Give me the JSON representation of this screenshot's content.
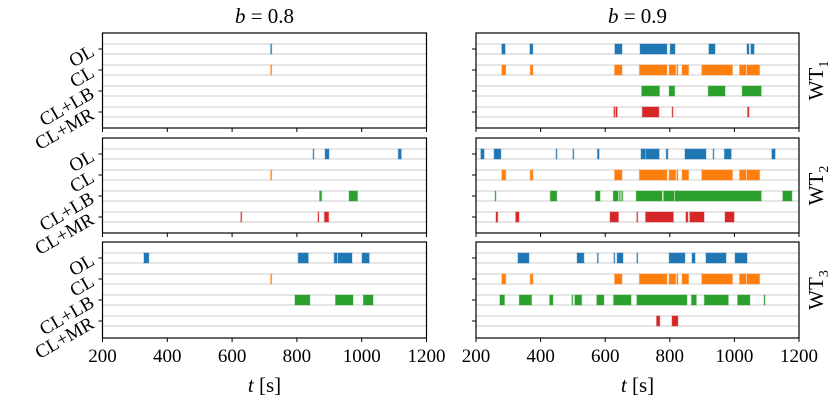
{
  "chart_data": {
    "type": "event-raster",
    "columns": [
      {
        "title_var": "b",
        "title_value": "0.8"
      },
      {
        "title_var": "b",
        "title_value": "0.9"
      }
    ],
    "rows": [
      {
        "label_base": "WT",
        "label_sub": "1"
      },
      {
        "label_base": "WT",
        "label_sub": "2"
      },
      {
        "label_base": "WT",
        "label_sub": "3"
      }
    ],
    "categories": [
      "OL",
      "CL",
      "CL+LB",
      "CL+MR"
    ],
    "colors": {
      "OL": "#1f77b4",
      "CL": "#ff7f0e",
      "CL+LB": "#2ca02c",
      "CL+MR": "#d62728"
    },
    "grid_color": "#cccccc",
    "xlabel_var": "t",
    "xlabel_unit": "[s]",
    "xlim": [
      200,
      1200
    ],
    "xticks": [
      200,
      400,
      600,
      800,
      1000,
      1200
    ],
    "grid": true,
    "panels": [
      {
        "column": 0,
        "row": 0,
        "intervals": {
          "OL": [
            [
              719,
              722
            ]
          ],
          "CL": [
            [
              719,
              722
            ]
          ],
          "CL+LB": [],
          "CL+MR": []
        }
      },
      {
        "column": 1,
        "row": 0,
        "intervals": {
          "OL": [
            [
              280,
              290
            ],
            [
              367,
              376
            ],
            [
              630,
              652
            ],
            [
              708,
              791
            ],
            [
              801,
              816
            ],
            [
              921,
              940
            ],
            [
              1039,
              1045
            ],
            [
              1051,
              1061
            ]
          ],
          "CL": [
            [
              280,
              292
            ],
            [
              368,
              376
            ],
            [
              629,
              652
            ],
            [
              706,
              791
            ],
            [
              798,
              818
            ],
            [
              822,
              825
            ],
            [
              838,
              858
            ],
            [
              899,
              994
            ],
            [
              1016,
              1036
            ],
            [
              1039,
              1078
            ]
          ],
          "CL+LB": [
            [
              713,
              768
            ],
            [
              798,
              815
            ],
            [
              919,
              971
            ],
            [
              1024,
              1083
            ]
          ],
          "CL+MR": [
            [
              627,
              629
            ],
            [
              633,
              637
            ],
            [
              715,
              766
            ],
            [
              807,
              809
            ],
            [
              1041,
              1045
            ]
          ]
        }
      },
      {
        "column": 0,
        "row": 1,
        "intervals": {
          "OL": [
            [
              850,
              852
            ],
            [
              887,
              899
            ],
            [
              1113,
              1122
            ]
          ],
          "CL": [
            [
              719,
              722
            ]
          ],
          "CL+LB": [
            [
              870,
              876
            ],
            [
              961,
              987
            ]
          ],
          "CL+MR": [
            [
              627,
              629
            ],
            [
              865,
              867
            ],
            [
              885,
              898
            ]
          ]
        }
      },
      {
        "column": 1,
        "row": 1,
        "intervals": {
          "OL": [
            [
              215,
              225
            ],
            [
              256,
              277
            ],
            [
              448,
              450
            ],
            [
              500,
              502
            ],
            [
              576,
              581
            ],
            [
              711,
              724
            ],
            [
              726,
              767
            ],
            [
              789,
              794
            ],
            [
              847,
              912
            ],
            [
              934,
              936
            ],
            [
              969,
              990
            ],
            [
              1116,
              1126
            ]
          ],
          "CL": [
            [
              280,
              292
            ],
            [
              368,
              376
            ],
            [
              629,
              652
            ],
            [
              706,
              791
            ],
            [
              798,
              818
            ],
            [
              822,
              825
            ],
            [
              838,
              858
            ],
            [
              899,
              994
            ],
            [
              1016,
              1036
            ],
            [
              1039,
              1078
            ]
          ],
          "CL+LB": [
            [
              259,
              261
            ],
            [
              430,
              450
            ],
            [
              570,
              584
            ],
            [
              625,
              640
            ],
            [
              644,
              646
            ],
            [
              651,
              654
            ],
            [
              696,
              776
            ],
            [
              781,
              813
            ],
            [
              816,
              1083
            ],
            [
              1150,
              1178
            ]
          ],
          "CL+MR": [
            [
              262,
              267
            ],
            [
              323,
              333
            ],
            [
              615,
              641
            ],
            [
              698,
              700
            ],
            [
              725,
              811
            ],
            [
              850,
              856
            ],
            [
              862,
              906
            ],
            [
              971,
              999
            ]
          ]
        }
      },
      {
        "column": 0,
        "row": 2,
        "intervals": {
          "OL": [
            [
              328,
              343
            ],
            [
              804,
              835
            ],
            [
              915,
              924
            ],
            [
              927,
              970
            ],
            [
              1001,
              1023
            ]
          ],
          "CL": [
            [
              719,
              722
            ]
          ],
          "CL+LB": [
            [
              794,
              840
            ],
            [
              919,
              973
            ],
            [
              1005,
              1035
            ]
          ],
          "CL+MR": []
        }
      },
      {
        "column": 1,
        "row": 2,
        "intervals": {
          "OL": [
            [
              330,
              364
            ],
            [
              513,
              534
            ],
            [
              576,
              578
            ],
            [
              627,
              629
            ],
            [
              637,
              655
            ],
            [
              698,
              700
            ],
            [
              798,
              847
            ],
            [
              869,
              878
            ],
            [
              912,
              974
            ],
            [
              1002,
              1039
            ]
          ],
          "CL": [
            [
              280,
              292
            ],
            [
              368,
              376
            ],
            [
              629,
              652
            ],
            [
              706,
              791
            ],
            [
              798,
              818
            ],
            [
              822,
              825
            ],
            [
              838,
              858
            ],
            [
              899,
              994
            ],
            [
              1016,
              1036
            ],
            [
              1039,
              1078
            ]
          ],
          "CL+LB": [
            [
              274,
              288
            ],
            [
              334,
              372
            ],
            [
              428,
              438
            ],
            [
              497,
              499
            ],
            [
              506,
              527
            ],
            [
              574,
              596
            ],
            [
              626,
              680
            ],
            [
              698,
              785
            ],
            [
              785,
              853
            ],
            [
              867,
              882
            ],
            [
              907,
              981
            ],
            [
              1010,
              1048
            ],
            [
              1092,
              1094
            ]
          ],
          "CL+MR": [
            [
              759,
              769
            ],
            [
              807,
              825
            ]
          ]
        }
      }
    ]
  }
}
